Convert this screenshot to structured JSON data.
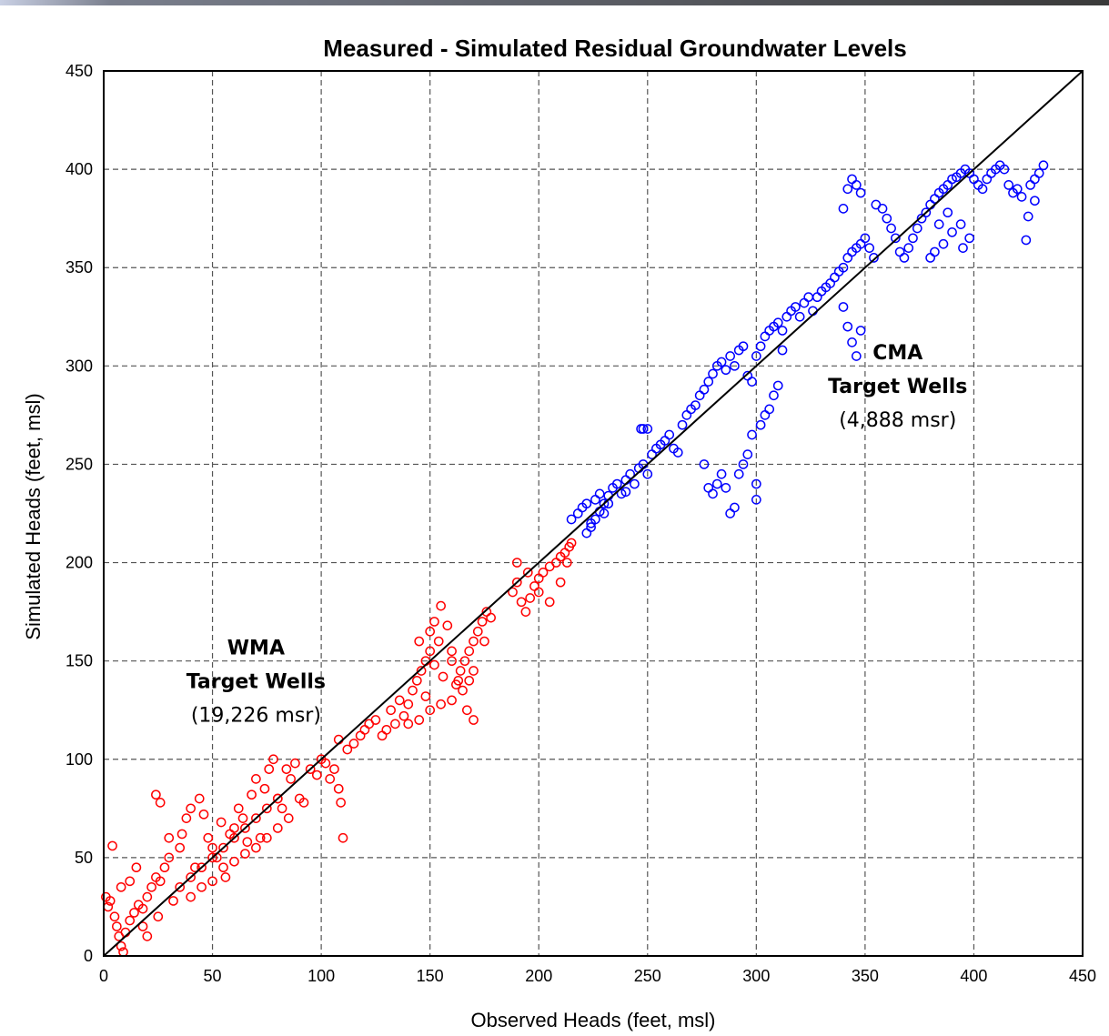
{
  "chart_data": {
    "type": "scatter",
    "title": "Measured - Simulated Residual Groundwater Levels",
    "xlabel": "Observed Heads (feet, msl)",
    "ylabel": "Simulated Heads (feet, msl)",
    "xlim": [
      0,
      450
    ],
    "ylim": [
      0,
      450
    ],
    "xticks": [
      "0",
      "50",
      "100",
      "150",
      "200",
      "250",
      "300",
      "350",
      "400",
      "450"
    ],
    "yticks": [
      "0",
      "50",
      "100",
      "150",
      "200",
      "250",
      "300",
      "350",
      "400",
      "450"
    ],
    "grid": true,
    "grid_style": "dashed",
    "reference_line": {
      "x": [
        0,
        450
      ],
      "y": [
        0,
        450
      ],
      "color": "#000000"
    },
    "annotations": [
      {
        "lines": [
          "WMA",
          "Target Wells",
          "(19,226 msr)"
        ],
        "x": 70,
        "y": 140
      },
      {
        "lines": [
          "CMA",
          "Target Wells",
          "(4,888 msr)"
        ],
        "x": 365,
        "y": 290
      }
    ],
    "series": [
      {
        "color": "#ff0000",
        "marker": "open-circle",
        "points": [
          [
            1,
            30
          ],
          [
            2,
            25
          ],
          [
            3,
            28
          ],
          [
            4,
            56
          ],
          [
            5,
            20
          ],
          [
            6,
            15
          ],
          [
            7,
            10
          ],
          [
            8,
            5
          ],
          [
            9,
            2
          ],
          [
            10,
            12
          ],
          [
            12,
            18
          ],
          [
            14,
            22
          ],
          [
            16,
            26
          ],
          [
            18,
            24
          ],
          [
            20,
            30
          ],
          [
            22,
            35
          ],
          [
            24,
            40
          ],
          [
            26,
            38
          ],
          [
            28,
            45
          ],
          [
            30,
            50
          ],
          [
            8,
            35
          ],
          [
            12,
            38
          ],
          [
            15,
            45
          ],
          [
            18,
            15
          ],
          [
            20,
            10
          ],
          [
            25,
            20
          ],
          [
            24,
            82
          ],
          [
            26,
            78
          ],
          [
            30,
            60
          ],
          [
            32,
            28
          ],
          [
            35,
            55
          ],
          [
            36,
            62
          ],
          [
            38,
            70
          ],
          [
            40,
            75
          ],
          [
            42,
            45
          ],
          [
            44,
            80
          ],
          [
            46,
            72
          ],
          [
            48,
            60
          ],
          [
            50,
            55
          ],
          [
            52,
            50
          ],
          [
            54,
            68
          ],
          [
            56,
            40
          ],
          [
            58,
            62
          ],
          [
            60,
            65
          ],
          [
            62,
            75
          ],
          [
            64,
            70
          ],
          [
            66,
            58
          ],
          [
            68,
            82
          ],
          [
            70,
            90
          ],
          [
            72,
            60
          ],
          [
            74,
            85
          ],
          [
            76,
            95
          ],
          [
            78,
            100
          ],
          [
            80,
            80
          ],
          [
            82,
            75
          ],
          [
            84,
            95
          ],
          [
            86,
            90
          ],
          [
            88,
            98
          ],
          [
            90,
            80
          ],
          [
            92,
            78
          ],
          [
            40,
            30
          ],
          [
            45,
            35
          ],
          [
            50,
            38
          ],
          [
            55,
            45
          ],
          [
            60,
            48
          ],
          [
            65,
            52
          ],
          [
            70,
            55
          ],
          [
            75,
            60
          ],
          [
            80,
            65
          ],
          [
            85,
            70
          ],
          [
            35,
            35
          ],
          [
            40,
            40
          ],
          [
            45,
            45
          ],
          [
            50,
            50
          ],
          [
            55,
            55
          ],
          [
            60,
            60
          ],
          [
            65,
            65
          ],
          [
            70,
            70
          ],
          [
            75,
            75
          ],
          [
            80,
            80
          ],
          [
            95,
            95
          ],
          [
            98,
            92
          ],
          [
            100,
            100
          ],
          [
            102,
            98
          ],
          [
            104,
            90
          ],
          [
            106,
            95
          ],
          [
            108,
            85
          ],
          [
            109,
            78
          ],
          [
            110,
            60
          ],
          [
            108,
            110
          ],
          [
            112,
            105
          ],
          [
            115,
            108
          ],
          [
            118,
            112
          ],
          [
            120,
            115
          ],
          [
            122,
            118
          ],
          [
            125,
            120
          ],
          [
            128,
            112
          ],
          [
            130,
            115
          ],
          [
            132,
            125
          ],
          [
            134,
            118
          ],
          [
            136,
            130
          ],
          [
            138,
            122
          ],
          [
            140,
            128
          ],
          [
            142,
            135
          ],
          [
            144,
            140
          ],
          [
            146,
            145
          ],
          [
            148,
            150
          ],
          [
            150,
            155
          ],
          [
            152,
            148
          ],
          [
            154,
            160
          ],
          [
            140,
            118
          ],
          [
            145,
            120
          ],
          [
            150,
            125
          ],
          [
            155,
            128
          ],
          [
            160,
            130
          ],
          [
            162,
            138
          ],
          [
            164,
            145
          ],
          [
            166,
            150
          ],
          [
            168,
            155
          ],
          [
            170,
            160
          ],
          [
            145,
            160
          ],
          [
            150,
            165
          ],
          [
            152,
            170
          ],
          [
            155,
            178
          ],
          [
            158,
            168
          ],
          [
            160,
            150
          ],
          [
            163,
            140
          ],
          [
            165,
            135
          ],
          [
            167,
            125
          ],
          [
            170,
            120
          ],
          [
            172,
            165
          ],
          [
            174,
            170
          ],
          [
            176,
            175
          ],
          [
            178,
            172
          ],
          [
            175,
            160
          ],
          [
            170,
            145
          ],
          [
            168,
            140
          ],
          [
            160,
            155
          ],
          [
            156,
            142
          ],
          [
            148,
            132
          ],
          [
            188,
            185
          ],
          [
            190,
            190
          ],
          [
            192,
            180
          ],
          [
            194,
            175
          ],
          [
            196,
            182
          ],
          [
            198,
            188
          ],
          [
            200,
            192
          ],
          [
            202,
            195
          ],
          [
            205,
            198
          ],
          [
            208,
            200
          ],
          [
            210,
            203
          ],
          [
            212,
            205
          ],
          [
            214,
            208
          ],
          [
            215,
            210
          ],
          [
            190,
            200
          ],
          [
            195,
            195
          ],
          [
            200,
            185
          ],
          [
            205,
            180
          ],
          [
            210,
            190
          ],
          [
            213,
            200
          ]
        ]
      },
      {
        "color": "#0000ff",
        "marker": "open-circle",
        "points": [
          [
            215,
            222
          ],
          [
            218,
            225
          ],
          [
            220,
            228
          ],
          [
            222,
            230
          ],
          [
            224,
            220
          ],
          [
            226,
            232
          ],
          [
            228,
            235
          ],
          [
            230,
            225
          ],
          [
            232,
            230
          ],
          [
            234,
            238
          ],
          [
            236,
            240
          ],
          [
            238,
            235
          ],
          [
            240,
            242
          ],
          [
            242,
            245
          ],
          [
            244,
            240
          ],
          [
            246,
            248
          ],
          [
            248,
            250
          ],
          [
            250,
            245
          ],
          [
            252,
            255
          ],
          [
            254,
            258
          ],
          [
            256,
            260
          ],
          [
            258,
            262
          ],
          [
            260,
            265
          ],
          [
            262,
            258
          ],
          [
            264,
            256
          ],
          [
            266,
            270
          ],
          [
            268,
            275
          ],
          [
            270,
            278
          ],
          [
            272,
            280
          ],
          [
            274,
            285
          ],
          [
            247,
            268
          ],
          [
            248,
            268
          ],
          [
            250,
            268
          ],
          [
            222,
            215
          ],
          [
            224,
            218
          ],
          [
            226,
            222
          ],
          [
            228,
            226
          ],
          [
            230,
            230
          ],
          [
            232,
            234
          ],
          [
            240,
            236
          ],
          [
            276,
            288
          ],
          [
            278,
            292
          ],
          [
            280,
            296
          ],
          [
            282,
            300
          ],
          [
            284,
            302
          ],
          [
            286,
            298
          ],
          [
            288,
            305
          ],
          [
            290,
            300
          ],
          [
            292,
            308
          ],
          [
            294,
            310
          ],
          [
            296,
            295
          ],
          [
            298,
            292
          ],
          [
            300,
            305
          ],
          [
            302,
            310
          ],
          [
            304,
            315
          ],
          [
            306,
            318
          ],
          [
            308,
            320
          ],
          [
            310,
            322
          ],
          [
            312,
            318
          ],
          [
            314,
            325
          ],
          [
            316,
            328
          ],
          [
            318,
            330
          ],
          [
            320,
            325
          ],
          [
            322,
            332
          ],
          [
            324,
            335
          ],
          [
            326,
            328
          ],
          [
            328,
            335
          ],
          [
            330,
            338
          ],
          [
            332,
            340
          ],
          [
            334,
            342
          ],
          [
            336,
            345
          ],
          [
            338,
            348
          ],
          [
            340,
            350
          ],
          [
            342,
            355
          ],
          [
            344,
            358
          ],
          [
            346,
            360
          ],
          [
            348,
            362
          ],
          [
            350,
            365
          ],
          [
            352,
            360
          ],
          [
            354,
            355
          ],
          [
            276,
            250
          ],
          [
            278,
            238
          ],
          [
            280,
            235
          ],
          [
            282,
            240
          ],
          [
            284,
            245
          ],
          [
            286,
            238
          ],
          [
            288,
            225
          ],
          [
            290,
            228
          ],
          [
            292,
            245
          ],
          [
            294,
            250
          ],
          [
            296,
            255
          ],
          [
            298,
            265
          ],
          [
            300,
            232
          ],
          [
            300,
            240
          ],
          [
            302,
            270
          ],
          [
            304,
            275
          ],
          [
            306,
            278
          ],
          [
            308,
            285
          ],
          [
            310,
            290
          ],
          [
            312,
            308
          ],
          [
            340,
            330
          ],
          [
            342,
            320
          ],
          [
            344,
            312
          ],
          [
            346,
            305
          ],
          [
            348,
            318
          ],
          [
            340,
            380
          ],
          [
            342,
            390
          ],
          [
            344,
            395
          ],
          [
            346,
            392
          ],
          [
            348,
            388
          ],
          [
            355,
            382
          ],
          [
            358,
            380
          ],
          [
            360,
            375
          ],
          [
            362,
            370
          ],
          [
            364,
            365
          ],
          [
            366,
            358
          ],
          [
            368,
            355
          ],
          [
            370,
            360
          ],
          [
            372,
            365
          ],
          [
            374,
            370
          ],
          [
            376,
            375
          ],
          [
            378,
            378
          ],
          [
            380,
            382
          ],
          [
            382,
            385
          ],
          [
            384,
            388
          ],
          [
            386,
            390
          ],
          [
            388,
            392
          ],
          [
            390,
            395
          ],
          [
            392,
            396
          ],
          [
            394,
            398
          ],
          [
            396,
            400
          ],
          [
            398,
            398
          ],
          [
            400,
            395
          ],
          [
            402,
            392
          ],
          [
            404,
            390
          ],
          [
            406,
            395
          ],
          [
            408,
            398
          ],
          [
            410,
            400
          ],
          [
            412,
            402
          ],
          [
            414,
            400
          ],
          [
            395,
            360
          ],
          [
            398,
            365
          ],
          [
            384,
            372
          ],
          [
            388,
            378
          ],
          [
            420,
            390
          ],
          [
            422,
            386
          ],
          [
            424,
            364
          ],
          [
            425,
            376
          ],
          [
            426,
            392
          ],
          [
            428,
            395
          ],
          [
            430,
            398
          ],
          [
            432,
            402
          ],
          [
            428,
            384
          ],
          [
            418,
            388
          ],
          [
            416,
            392
          ],
          [
            380,
            355
          ],
          [
            382,
            358
          ],
          [
            386,
            362
          ],
          [
            390,
            368
          ],
          [
            394,
            372
          ]
        ]
      }
    ]
  }
}
